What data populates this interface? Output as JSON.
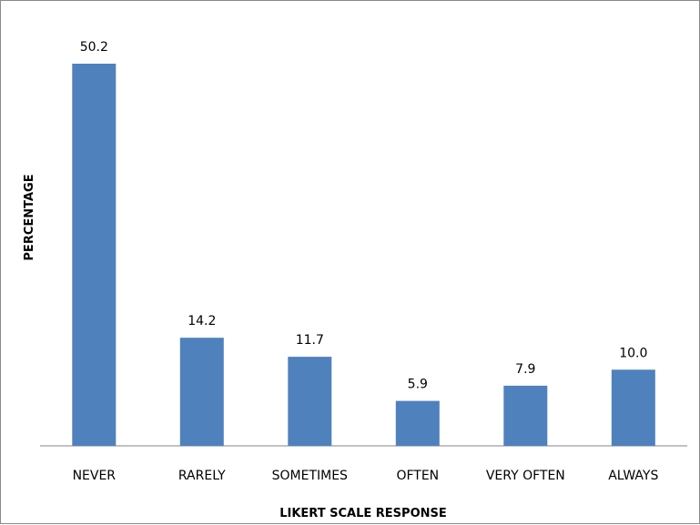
{
  "chart_data": {
    "type": "bar",
    "title": "",
    "xlabel": "LIKERT SCALE RESPONSE",
    "ylabel": "PERCENTAGE",
    "categories": [
      "NEVER",
      "RARELY",
      "SOMETIMES",
      "OFTEN",
      "VERY OFTEN",
      "ALWAYS"
    ],
    "series": [
      {
        "values": [
          50.2,
          14.2,
          11.7,
          5.9,
          7.9,
          10.0
        ],
        "value_labels": [
          "50.2",
          "14.2",
          "11.7",
          "5.9",
          "7.9",
          "10.0"
        ]
      }
    ],
    "ylim": [
      0,
      50.2
    ],
    "grid": false,
    "legend": "none",
    "bar_color": "#4f81bd",
    "axis_color": "#868686"
  }
}
